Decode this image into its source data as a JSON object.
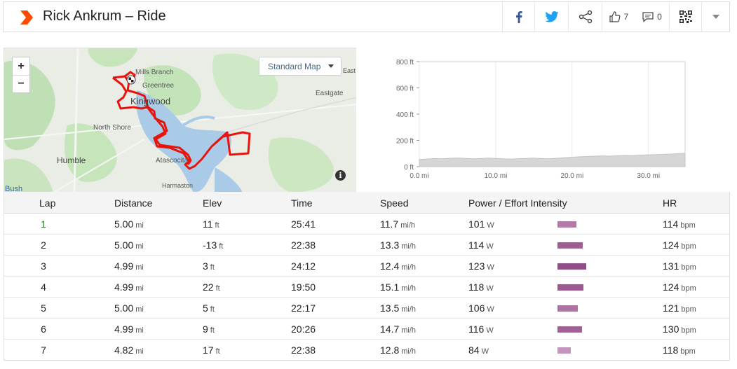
{
  "header": {
    "title": "Rick Ankrum – Ride",
    "kudos_count": "7",
    "comment_count": "0"
  },
  "map": {
    "style_label": "Standard Map",
    "zoom_in": "+",
    "zoom_out": "−",
    "labels": {
      "mills_branch": "Mills Branch",
      "greentree": "Greentree",
      "kingwood": "Kingwood",
      "north_shore": "North Shore",
      "humble": "Humble",
      "atascocita": "Atascocita",
      "harmaston": "Harmaston",
      "eastgate": "Eastgate",
      "east_gro": "East Grov",
      "bush": "Bush"
    },
    "info": "i"
  },
  "elevation_chart": {
    "y_ticks": [
      "800 ft",
      "600 ft",
      "400 ft",
      "200 ft",
      "0 ft"
    ],
    "x_ticks": [
      "0.0 mi",
      "10.0 mi",
      "20.0 mi",
      "30.0 mi"
    ]
  },
  "chart_data": {
    "type": "area",
    "xlabel": "",
    "ylabel": "",
    "xlim": [
      0,
      34.8
    ],
    "ylim": [
      0,
      800
    ],
    "x_ticks": [
      0,
      10,
      20,
      30
    ],
    "y_ticks": [
      0,
      200,
      400,
      600,
      800
    ],
    "grid": true,
    "x": [
      0,
      1,
      2,
      3,
      4,
      5,
      6,
      7,
      8,
      9,
      10,
      11,
      12,
      13,
      14,
      15,
      16,
      17,
      18,
      19,
      20,
      21,
      22,
      23,
      24,
      25,
      26,
      27,
      28,
      29,
      30,
      31,
      32,
      33,
      34,
      34.8
    ],
    "values": [
      55,
      58,
      62,
      60,
      64,
      66,
      63,
      60,
      62,
      65,
      63,
      60,
      58,
      61,
      63,
      65,
      62,
      60,
      64,
      68,
      72,
      75,
      78,
      80,
      82,
      80,
      84,
      86,
      85,
      88,
      90,
      92,
      94,
      96,
      100,
      102
    ]
  },
  "table": {
    "columns": [
      "Lap",
      "Distance",
      "Elev",
      "Time",
      "Speed",
      "Power / Effort Intensity",
      "HR"
    ],
    "rows": [
      {
        "lap": "1",
        "distance": "5.00",
        "distance_unit": "mi",
        "elev": "11",
        "elev_unit": "ft",
        "time": "25:41",
        "speed": "11.7",
        "speed_unit": "mi/h",
        "power": "101",
        "power_unit": "W",
        "intensity": 0.62,
        "hr": "114",
        "hr_unit": "bpm"
      },
      {
        "lap": "2",
        "distance": "5.00",
        "distance_unit": "mi",
        "elev": "-13",
        "elev_unit": "ft",
        "time": "22:38",
        "speed": "13.3",
        "speed_unit": "mi/h",
        "power": "114",
        "power_unit": "W",
        "intensity": 0.82,
        "hr": "124",
        "hr_unit": "bpm"
      },
      {
        "lap": "3",
        "distance": "4.99",
        "distance_unit": "mi",
        "elev": "3",
        "elev_unit": "ft",
        "time": "24:12",
        "speed": "12.4",
        "speed_unit": "mi/h",
        "power": "123",
        "power_unit": "W",
        "intensity": 0.93,
        "hr": "131",
        "hr_unit": "bpm"
      },
      {
        "lap": "4",
        "distance": "4.99",
        "distance_unit": "mi",
        "elev": "22",
        "elev_unit": "ft",
        "time": "19:50",
        "speed": "15.1",
        "speed_unit": "mi/h",
        "power": "118",
        "power_unit": "W",
        "intensity": 0.84,
        "hr": "124",
        "hr_unit": "bpm"
      },
      {
        "lap": "5",
        "distance": "5.00",
        "distance_unit": "mi",
        "elev": "5",
        "elev_unit": "ft",
        "time": "22:17",
        "speed": "13.5",
        "speed_unit": "mi/h",
        "power": "106",
        "power_unit": "W",
        "intensity": 0.67,
        "hr": "121",
        "hr_unit": "bpm"
      },
      {
        "lap": "6",
        "distance": "4.99",
        "distance_unit": "mi",
        "elev": "9",
        "elev_unit": "ft",
        "time": "20:26",
        "speed": "14.7",
        "speed_unit": "mi/h",
        "power": "116",
        "power_unit": "W",
        "intensity": 0.79,
        "hr": "130",
        "hr_unit": "bpm"
      },
      {
        "lap": "7",
        "distance": "4.82",
        "distance_unit": "mi",
        "elev": "17",
        "elev_unit": "ft",
        "time": "22:38",
        "speed": "12.8",
        "speed_unit": "mi/h",
        "power": "84",
        "power_unit": "W",
        "intensity": 0.44,
        "hr": "118",
        "hr_unit": "bpm"
      }
    ]
  },
  "colors": {
    "brand": "#fc4c02",
    "route": "#e8140c",
    "facebook": "#3b5998",
    "twitter": "#1da1f2",
    "elevation_fill": "#d6d6d6",
    "intensity_light": "#c99ac0",
    "intensity_dark": "#8e4a85"
  }
}
